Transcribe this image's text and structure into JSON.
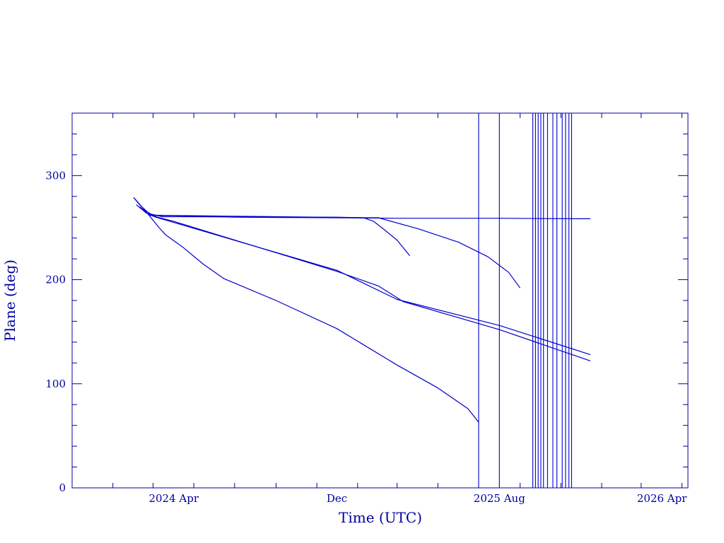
{
  "chart_data": {
    "type": "line",
    "title": "",
    "xlabel": "Time (UTC)",
    "ylabel": "Plane (deg)",
    "x_axis": {
      "type": "date",
      "range": [
        "2023-11-01",
        "2026-05-10"
      ],
      "tick_labels": [
        {
          "date": "2024-04-01",
          "label": "2024 Apr"
        },
        {
          "date": "2024-12-01",
          "label": "Dec"
        },
        {
          "date": "2025-08-01",
          "label": "2025 Aug"
        },
        {
          "date": "2026-04-01",
          "label": "2026 Apr"
        }
      ]
    },
    "y_axis": {
      "range": [
        0,
        360
      ],
      "tick_labels": [
        {
          "value": 0,
          "label": "0"
        },
        {
          "value": 100,
          "label": "100"
        },
        {
          "value": 200,
          "label": "200"
        },
        {
          "value": 300,
          "label": "300"
        }
      ]
    },
    "grid": false,
    "legend": "none",
    "line_color": "#0000cc",
    "axis_color": "#0000a0",
    "series": [
      {
        "points": [
          [
            "2024-02-01",
            279
          ],
          [
            "2024-02-10",
            272
          ],
          [
            "2024-02-20",
            266
          ],
          [
            "2024-03-01",
            261.5
          ],
          [
            "2024-04-01",
            261.5
          ],
          [
            "2024-07-01",
            260
          ],
          [
            "2024-12-01",
            259.5
          ],
          [
            "2025-03-01",
            259
          ],
          [
            "2025-08-01",
            259
          ],
          [
            "2025-12-01",
            258.5
          ],
          [
            "2025-12-15",
            258.5
          ]
        ]
      },
      {
        "points": [
          [
            "2024-02-05",
            272
          ],
          [
            "2024-02-20",
            264
          ],
          [
            "2024-03-15",
            260.5
          ],
          [
            "2024-12-01",
            260
          ],
          [
            "2025-01-10",
            259.5
          ],
          [
            "2025-01-25",
            256
          ],
          [
            "2025-02-10",
            248
          ],
          [
            "2025-03-01",
            238
          ],
          [
            "2025-03-20",
            223
          ]
        ]
      },
      {
        "points": [
          [
            "2024-03-01",
            262
          ],
          [
            "2024-07-01",
            261
          ],
          [
            "2025-01-15",
            259.5
          ],
          [
            "2025-02-01",
            259.5
          ],
          [
            "2025-04-01",
            249
          ],
          [
            "2025-06-01",
            236
          ],
          [
            "2025-07-15",
            222
          ],
          [
            "2025-08-15",
            207
          ],
          [
            "2025-09-01",
            192
          ]
        ]
      },
      {
        "points": [
          [
            "2024-02-10",
            270
          ],
          [
            "2024-02-20",
            264
          ],
          [
            "2024-03-05",
            260
          ],
          [
            "2024-04-01",
            255
          ],
          [
            "2024-12-01",
            209
          ],
          [
            "2025-03-01",
            181
          ],
          [
            "2025-08-01",
            156
          ],
          [
            "2025-12-15",
            128
          ]
        ]
      },
      {
        "points": [
          [
            "2024-02-10",
            270
          ],
          [
            "2024-02-25",
            262
          ],
          [
            "2024-04-01",
            256
          ],
          [
            "2024-12-01",
            208
          ],
          [
            "2025-02-01",
            194
          ],
          [
            "2025-03-10",
            179
          ],
          [
            "2025-08-01",
            152
          ],
          [
            "2025-12-15",
            122
          ]
        ]
      },
      {
        "points": [
          [
            "2024-02-01",
            279
          ],
          [
            "2024-02-20",
            265
          ],
          [
            "2024-03-10",
            250
          ],
          [
            "2024-03-20",
            243
          ],
          [
            "2024-04-15",
            231
          ],
          [
            "2024-05-15",
            215
          ],
          [
            "2024-06-15",
            201
          ],
          [
            "2024-09-01",
            180
          ],
          [
            "2024-12-01",
            153
          ],
          [
            "2025-03-01",
            118
          ],
          [
            "2025-05-01",
            96
          ],
          [
            "2025-06-15",
            76
          ],
          [
            "2025-07-01",
            63
          ]
        ]
      }
    ],
    "vertical_lines": [
      "2025-07-01",
      "2025-08-01",
      "2025-09-20",
      "2025-09-24",
      "2025-09-28",
      "2025-10-02",
      "2025-10-06",
      "2025-10-12",
      "2025-10-20",
      "2025-10-26",
      "2025-11-03",
      "2025-11-08",
      "2025-11-13",
      "2025-11-17"
    ]
  }
}
